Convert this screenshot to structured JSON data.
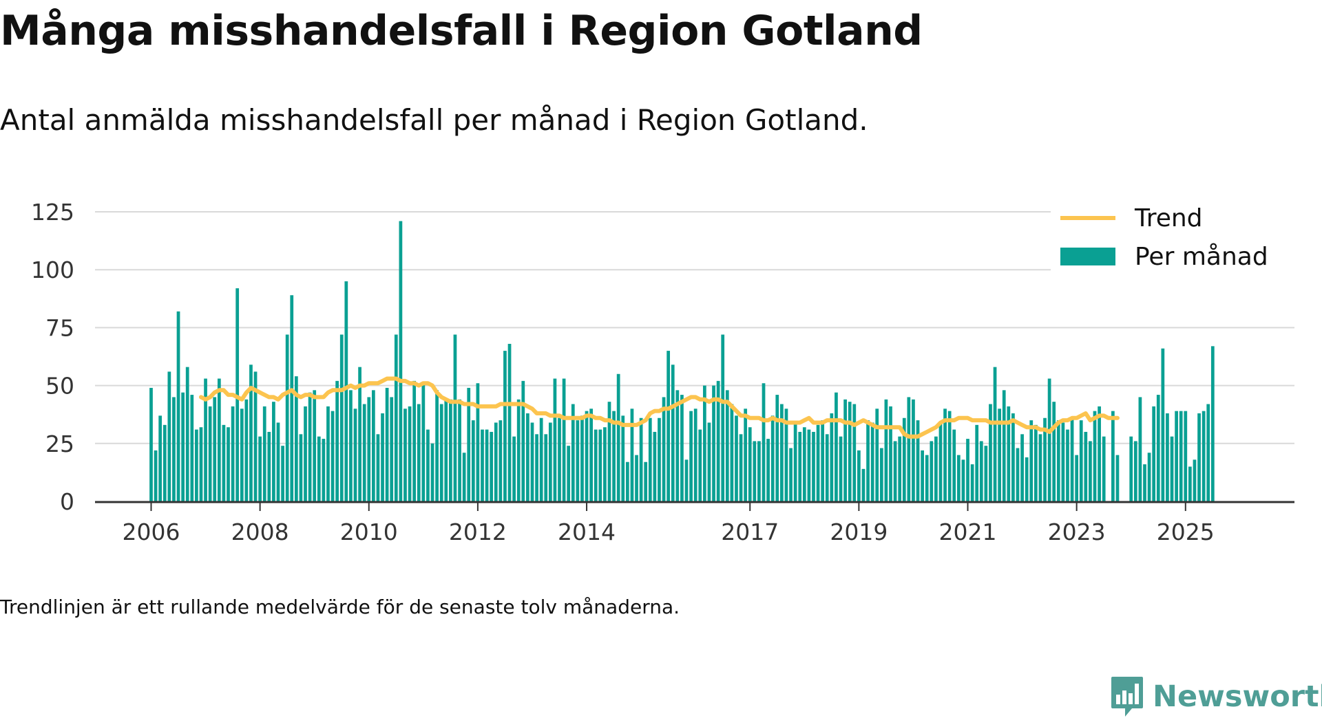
{
  "title": "Många misshandelsfall i Region Gotland",
  "subtitle": "Antal anmälda misshandelsfall per månad i Region Gotland.",
  "note": "Trendlinjen är ett rullande medelvärde för de senaste tolv månaderna.",
  "brand": "Newsworthy",
  "colors": {
    "bars": "#0aa093",
    "trend": "#fcc44f",
    "grid": "#d9d9d9",
    "axis": "#333333",
    "brand": "#4f9e96"
  },
  "chart_data": {
    "type": "bar",
    "x_axis_labels": [
      "2006",
      "2008",
      "2010",
      "2012",
      "2014",
      "2017",
      "2019",
      "2021",
      "2023",
      "2025"
    ],
    "y_ticks": [
      0,
      25,
      50,
      75,
      100,
      125
    ],
    "ylim": [
      0,
      125
    ],
    "legend": {
      "position": "top-right",
      "items": [
        {
          "label": "Trend",
          "kind": "line"
        },
        {
          "label": "Per månad",
          "kind": "bar"
        }
      ]
    },
    "grid": true,
    "start_month": "2006-01",
    "series": [
      {
        "name": "Per månad",
        "type": "bar",
        "values": [
          49,
          22,
          37,
          33,
          56,
          45,
          82,
          47,
          58,
          46,
          31,
          32,
          53,
          41,
          45,
          53,
          33,
          32,
          41,
          92,
          40,
          44,
          59,
          56,
          28,
          41,
          30,
          43,
          34,
          24,
          72,
          89,
          54,
          29,
          41,
          47,
          48,
          28,
          27,
          41,
          39,
          52,
          72,
          95,
          48,
          40,
          58,
          42,
          45,
          48,
          29,
          38,
          49,
          45,
          72,
          121,
          40,
          41,
          52,
          42,
          51,
          31,
          25,
          48,
          42,
          44,
          44,
          72,
          44,
          21,
          49,
          35,
          51,
          31,
          31,
          30,
          34,
          35,
          65,
          68,
          28,
          44,
          52,
          38,
          34,
          29,
          36,
          29,
          34,
          53,
          36,
          53,
          24,
          42,
          35,
          37,
          39,
          40,
          31,
          31,
          32,
          43,
          39,
          55,
          37,
          17,
          40,
          20,
          36,
          17,
          36,
          30,
          36,
          45,
          65,
          59,
          48,
          46,
          18,
          39,
          40,
          31,
          50,
          34,
          50,
          52,
          72,
          48,
          42,
          37,
          29,
          40,
          32,
          26,
          26,
          51,
          27,
          37,
          46,
          42,
          40,
          23,
          34,
          30,
          32,
          31,
          30,
          33,
          35,
          29,
          38,
          47,
          28,
          44,
          43,
          42,
          22,
          14,
          35,
          34,
          40,
          23,
          44,
          41,
          26,
          28,
          36,
          45,
          44,
          35,
          22,
          20,
          26,
          28,
          34,
          40,
          39,
          31,
          20,
          18,
          27,
          16,
          33,
          26,
          24,
          42,
          58,
          40,
          48,
          41,
          38,
          23,
          29,
          19,
          35,
          33,
          29,
          36,
          53,
          43,
          35,
          34,
          31,
          36,
          20,
          35,
          30,
          26,
          39,
          41,
          28,
          0,
          39,
          20,
          0,
          0,
          28,
          26,
          45,
          16,
          21,
          41,
          46,
          66,
          38,
          28,
          39,
          39,
          39,
          15,
          18,
          38,
          39,
          42,
          67
        ]
      },
      {
        "name": "Trend",
        "type": "line",
        "start_month": "2006-12",
        "values": [
          45,
          44,
          45,
          47,
          48,
          48,
          46,
          46,
          45,
          44,
          47,
          49,
          48,
          47,
          46,
          45,
          45,
          44,
          46,
          47,
          48,
          46,
          45,
          46,
          46,
          45,
          45,
          45,
          47,
          48,
          48,
          48,
          49,
          50,
          49,
          50,
          50,
          51,
          51,
          51,
          52,
          53,
          53,
          53,
          52,
          52,
          51,
          51,
          50,
          51,
          51,
          50,
          47,
          45,
          44,
          43,
          43,
          43,
          42,
          42,
          42,
          41,
          41,
          41,
          41,
          41,
          42,
          42,
          42,
          42,
          42,
          42,
          41,
          40,
          38,
          38,
          38,
          37,
          37,
          37,
          36,
          36,
          36,
          36,
          36,
          37,
          37,
          36,
          36,
          35,
          35,
          34,
          34,
          33,
          33,
          33,
          33,
          34,
          35,
          38,
          39,
          39,
          40,
          40,
          41,
          42,
          43,
          44,
          45,
          45,
          44,
          44,
          43,
          44,
          44,
          43,
          43,
          41,
          39,
          37,
          37,
          36,
          36,
          36,
          35,
          35,
          36,
          35,
          35,
          34,
          34,
          34,
          34,
          35,
          36,
          34,
          34,
          34,
          35,
          35,
          35,
          35,
          34,
          34,
          33,
          34,
          35,
          34,
          33,
          32,
          32,
          32,
          32,
          32,
          32,
          29,
          28,
          28,
          28,
          29,
          30,
          31,
          32,
          34,
          35,
          35,
          35,
          36,
          36,
          36,
          35,
          35,
          35,
          35,
          34,
          34,
          34,
          34,
          34,
          35,
          34,
          33,
          32,
          32,
          32,
          31,
          31,
          30,
          32,
          34,
          35,
          35,
          36,
          36,
          37,
          38,
          35,
          36,
          37,
          37,
          36,
          36,
          36
        ]
      }
    ]
  }
}
